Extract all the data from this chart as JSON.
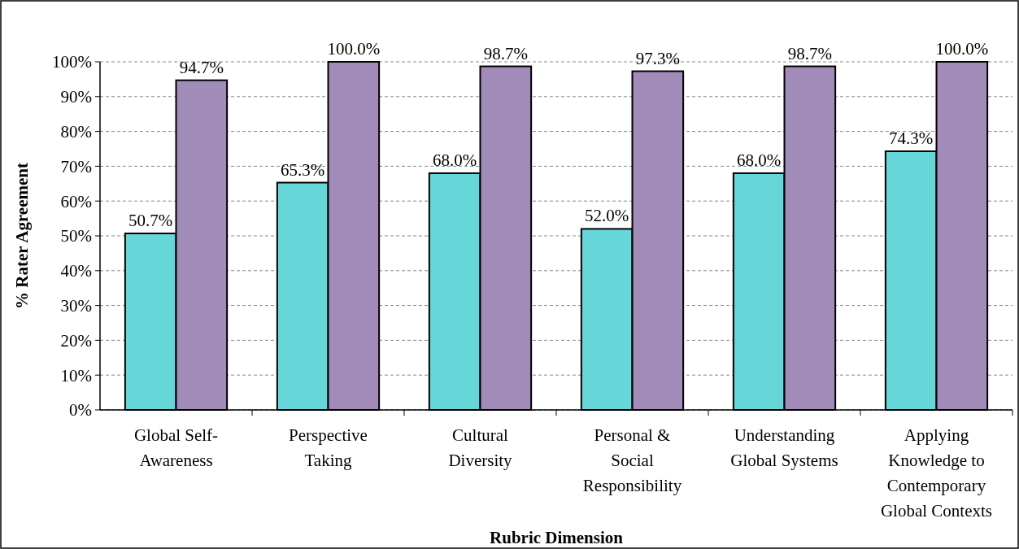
{
  "chart_data": {
    "type": "bar",
    "xlabel": "Rubric Dimension",
    "ylabel": "% Rater Agreement",
    "categories": [
      "Global Self-Awareness",
      "Perspective Taking",
      "Cultural Diversity",
      "Personal & Social Responsibility",
      "Understanding Global Systems",
      "Applying Knowledge to Contemporary Global Contexts"
    ],
    "series": [
      {
        "color": "#66d6d8",
        "values": [
          50.7,
          65.3,
          68.0,
          52.0,
          68.0,
          74.3
        ],
        "value_labels": [
          "50.7%",
          "65.3%",
          "68.0%",
          "52.0%",
          "68.0%",
          "74.3%"
        ]
      },
      {
        "color": "#a08bb9",
        "values": [
          94.7,
          100.0,
          98.7,
          97.3,
          98.7,
          100.0
        ],
        "value_labels": [
          "94.7%",
          "100.0%",
          "98.7%",
          "97.3%",
          "98.7%",
          "100.0%"
        ]
      }
    ],
    "ylim": [
      0,
      100
    ],
    "yticks": [
      {
        "value": 0,
        "label": "0%"
      },
      {
        "value": 10,
        "label": "10%"
      },
      {
        "value": 20,
        "label": "20%"
      },
      {
        "value": 30,
        "label": "30%"
      },
      {
        "value": 40,
        "label": "40%"
      },
      {
        "value": 50,
        "label": "50%"
      },
      {
        "value": 60,
        "label": "60%"
      },
      {
        "value": 70,
        "label": "70%"
      },
      {
        "value": 80,
        "label": "80%"
      },
      {
        "value": 90,
        "label": "90%"
      },
      {
        "value": 100,
        "label": "100%"
      }
    ],
    "grid": "y"
  }
}
